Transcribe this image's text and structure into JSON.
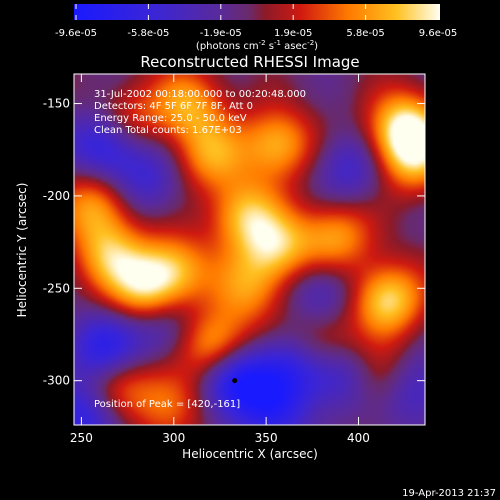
{
  "chart_data": {
    "type": "heatmap",
    "title": "Reconstructed RHESSI Image",
    "xlabel": "Heliocentric X (arcsec)",
    "ylabel": "Heliocentric Y (arcsec)",
    "xlim": [
      246,
      436
    ],
    "ylim": [
      -324,
      -134
    ],
    "xticks": [
      250,
      300,
      350,
      400
    ],
    "yticks": [
      -150,
      -200,
      -250,
      -300
    ],
    "colorbar": {
      "ticks": [
        "-9.6e-05",
        "-5.8e-05",
        "-1.9e-05",
        "1.9e-05",
        "5.8e-05",
        "9.6e-05"
      ],
      "range": [
        -9.6e-05,
        9.6e-05
      ],
      "unit_base": "(photons cm",
      "unit_exp1": "-2",
      "unit_mid": " s",
      "unit_exp2": "-1",
      "unit_mid2": " asec",
      "unit_exp3": "-2",
      "unit_end": ")"
    },
    "annotations": [
      "31-Jul-2002 00:18:00.000 to 00:20:48.000",
      "Detectors: 4F 5F 6F 7F 8F, Att 0",
      "Energy Range: 25.0 - 50.0 keV",
      "Clean    Total counts: 1.67E+03"
    ],
    "peak_label": "Position of Peak = [420,-161]",
    "peak": [
      420,
      -161
    ],
    "hotspots": [
      {
        "x": 425,
        "y": -163,
        "v": 1.0
      },
      {
        "x": 416,
        "y": -256,
        "v": 0.95
      },
      {
        "x": 322,
        "y": -281,
        "v": 0.9
      },
      {
        "x": 284,
        "y": -251,
        "v": 0.8
      },
      {
        "x": 356,
        "y": -228,
        "v": 0.8
      },
      {
        "x": 338,
        "y": -210,
        "v": 0.75
      },
      {
        "x": 258,
        "y": -205,
        "v": 0.7
      },
      {
        "x": 265,
        "y": -232,
        "v": 0.7
      },
      {
        "x": 300,
        "y": -240,
        "v": 0.75
      },
      {
        "x": 308,
        "y": -150,
        "v": 0.7
      },
      {
        "x": 356,
        "y": -172,
        "v": 0.8
      },
      {
        "x": 388,
        "y": -222,
        "v": 0.7
      },
      {
        "x": 430,
        "y": -180,
        "v": 0.7
      },
      {
        "x": 410,
        "y": -300,
        "v": 0.5
      },
      {
        "x": 268,
        "y": -300,
        "v": 0.55
      },
      {
        "x": 297,
        "y": -312,
        "v": 0.6
      },
      {
        "x": 320,
        "y": -178,
        "v": 0.65
      },
      {
        "x": 275,
        "y": -160,
        "v": 0.55
      },
      {
        "x": 340,
        "y": -250,
        "v": 0.6
      },
      {
        "x": 380,
        "y": -280,
        "v": 0.55
      },
      {
        "x": 333,
        "y": -300,
        "v": -1.0
      },
      {
        "x": 264,
        "y": -172,
        "v": -0.8
      },
      {
        "x": 262,
        "y": -284,
        "v": -0.8
      },
      {
        "x": 252,
        "y": -320,
        "v": -0.6
      },
      {
        "x": 364,
        "y": -292,
        "v": -0.6
      },
      {
        "x": 392,
        "y": -298,
        "v": -0.6
      },
      {
        "x": 355,
        "y": -318,
        "v": -0.5
      },
      {
        "x": 430,
        "y": -306,
        "v": -0.5
      },
      {
        "x": 295,
        "y": -270,
        "v": -0.5
      },
      {
        "x": 380,
        "y": -252,
        "v": -0.45
      },
      {
        "x": 395,
        "y": -185,
        "v": -0.45
      },
      {
        "x": 285,
        "y": -192,
        "v": -0.45
      }
    ]
  },
  "footer": {
    "timestamp": "19-Apr-2013 21:37"
  }
}
